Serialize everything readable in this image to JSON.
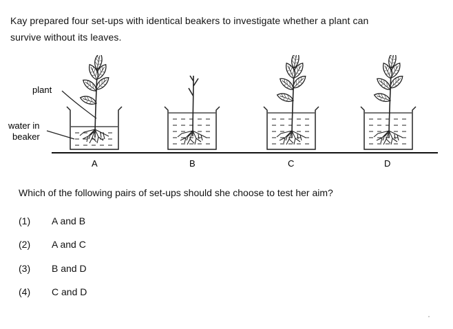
{
  "question": {
    "line1": "Kay prepared four set-ups with identical beakers to investigate whether a plant can",
    "line2": "survive without its leaves."
  },
  "diagram": {
    "labels": {
      "plant": "plant",
      "water_line1": "water in",
      "water_line2": "beaker"
    },
    "setups": [
      {
        "letter": "A",
        "water": "low",
        "leaves": true
      },
      {
        "letter": "B",
        "water": "high",
        "leaves": false
      },
      {
        "letter": "C",
        "water": "high",
        "leaves": true
      },
      {
        "letter": "D",
        "water": "high",
        "leaves": true
      }
    ]
  },
  "prompt": "Which of the following pairs of set-ups should she choose to test her aim?",
  "options": [
    {
      "num": "(1)",
      "text": "A and B"
    },
    {
      "num": "(2)",
      "text": "A and C"
    },
    {
      "num": "(3)",
      "text": "B and D"
    },
    {
      "num": "(4)",
      "text": "C and D"
    }
  ]
}
